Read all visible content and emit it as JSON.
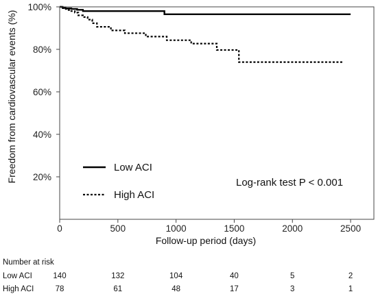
{
  "chart_data": {
    "type": "line",
    "step": true,
    "xlabel": "Follow-up period (days)",
    "ylabel": "Freedom from cardiovascular events (%)",
    "xlim": [
      0,
      2700
    ],
    "ylim": [
      0,
      100
    ],
    "xticks": [
      0,
      500,
      1000,
      1500,
      2000,
      2500
    ],
    "yticks": [
      20,
      40,
      60,
      80,
      100
    ],
    "ytick_labels": [
      "20%",
      "40%",
      "60%",
      "80%",
      "100%"
    ],
    "grid": false,
    "legend_position": "bottom-left",
    "annotation": "Log-rank test P < 0.001",
    "series": [
      {
        "name": "Low ACI",
        "style": "solid",
        "color": "#000000",
        "points": [
          [
            0,
            100
          ],
          [
            25,
            99.6
          ],
          [
            50,
            99.3
          ],
          [
            100,
            99.0
          ],
          [
            150,
            98.6
          ],
          [
            200,
            98.0
          ],
          [
            890,
            98.0
          ],
          [
            900,
            96.5
          ],
          [
            2500,
            96.5
          ]
        ]
      },
      {
        "name": "High ACI",
        "style": "dotted",
        "color": "#000000",
        "points": [
          [
            0,
            100
          ],
          [
            20,
            99.4
          ],
          [
            40,
            99.0
          ],
          [
            60,
            98.5
          ],
          [
            90,
            98.0
          ],
          [
            130,
            97.3
          ],
          [
            160,
            96.0
          ],
          [
            200,
            95.2
          ],
          [
            240,
            94.0
          ],
          [
            280,
            92.3
          ],
          [
            320,
            90.6
          ],
          [
            440,
            88.9
          ],
          [
            470,
            88.9
          ],
          [
            560,
            87.6
          ],
          [
            660,
            87.6
          ],
          [
            740,
            86.0
          ],
          [
            890,
            86.0
          ],
          [
            920,
            84.3
          ],
          [
            1110,
            84.3
          ],
          [
            1130,
            82.7
          ],
          [
            1320,
            82.7
          ],
          [
            1350,
            79.7
          ],
          [
            1520,
            79.7
          ],
          [
            1540,
            74.0
          ],
          [
            2440,
            74.0
          ]
        ]
      }
    ]
  },
  "number_at_risk": {
    "title": "Number at risk",
    "rows": [
      {
        "label": "Low ACI",
        "values": [
          "140",
          "132",
          "104",
          "40",
          "5",
          "2"
        ]
      },
      {
        "label": "High ACI",
        "values": [
          "78",
          "61",
          "48",
          "17",
          "3",
          "1"
        ]
      }
    ]
  }
}
